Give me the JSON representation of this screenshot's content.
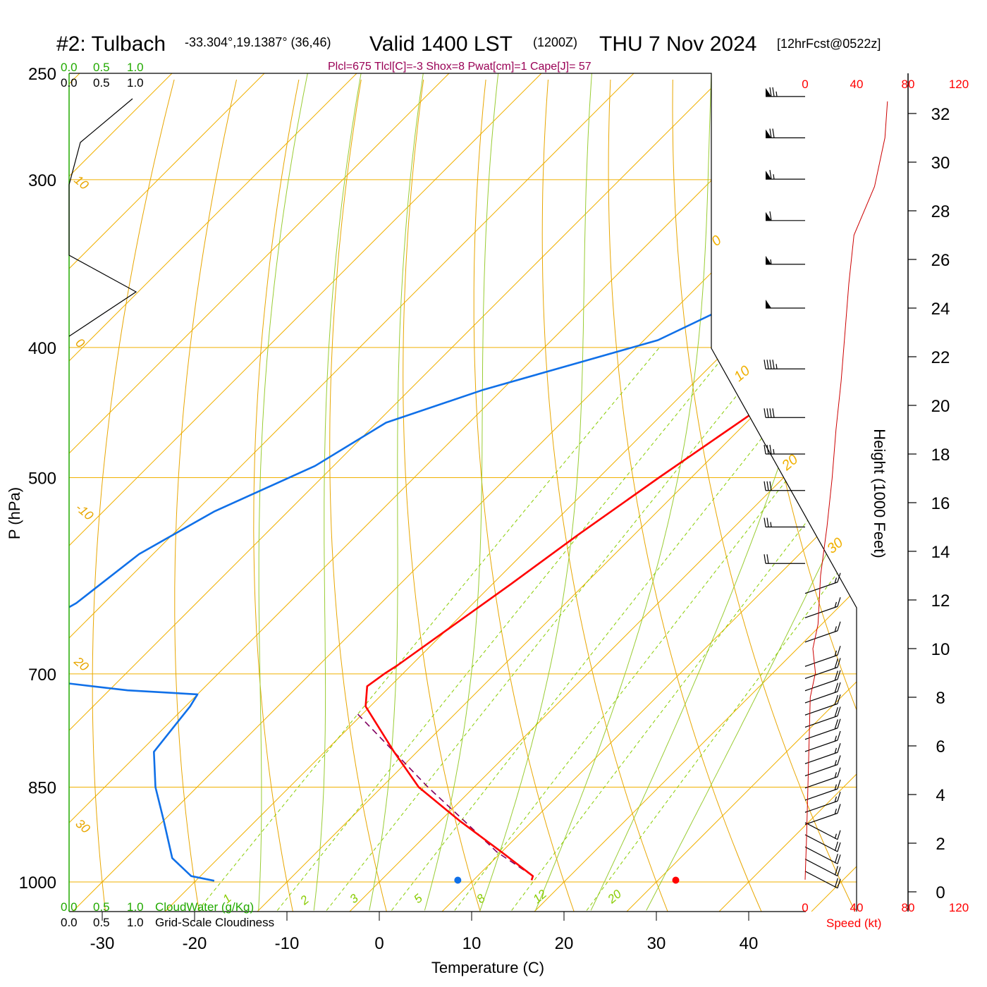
{
  "header": {
    "station": "#2: Tulbach",
    "coords": "-33.304°,19.1387° (36,46)",
    "valid": "Valid 1400 LST",
    "zulu": "(1200Z)",
    "date": "THU 7 Nov 2024",
    "forecast": "[12hrFcst@0522z]",
    "params": "Plcl=675 Tlcl[C]=-3 Shox=8 Pwat[cm]=1 Cape[J]= 57"
  },
  "cloud_scale": {
    "ticks": [
      "0.0",
      "0.5",
      "1.0"
    ],
    "water_label": "CloudWater (g/Kg)",
    "cloudiness_label": "Grid-Scale Cloudiness"
  },
  "speed_scale": {
    "ticks": [
      "0",
      "40",
      "80",
      "120"
    ],
    "label": "Speed (kt)"
  },
  "colors": {
    "temperature": "#ff0000",
    "dewpoint": "#1070e8",
    "parcel": "#800060",
    "isotherm": "#f0b000",
    "mixing_ratio": "#88cc00",
    "moist_adiabat": "#99cc33",
    "wind_speed": "#cc0000"
  },
  "chart_data": {
    "type": "skew-t",
    "title": "#2: Tulbach Valid 1400 LST (1200Z) THU 7 Nov 2024 [12hrFcst@0522z]",
    "xlabel": "Temperature (C)",
    "ylabel": "P (hPa)",
    "y2label": "Height (1000 Feet)",
    "x_ticks": [
      "-30",
      "-20",
      "-10",
      "0",
      "10",
      "20",
      "30",
      "40"
    ],
    "p_ticks": [
      "250",
      "300",
      "400",
      "500",
      "700",
      "850",
      "1000"
    ],
    "height_ticks": [
      "0",
      "2",
      "4",
      "6",
      "8",
      "10",
      "12",
      "14",
      "16",
      "18",
      "20",
      "22",
      "24",
      "26",
      "28",
      "30",
      "32"
    ],
    "isotherm_labels": [
      "-30",
      "-20",
      "-10",
      "0",
      "10",
      "20",
      "30",
      "-10",
      "0",
      "10"
    ],
    "mixing_ratio_labels": [
      "1",
      "2",
      "3",
      "5",
      "8",
      "12",
      "20"
    ],
    "series": [
      {
        "name": "Temperature",
        "points": [
          [
            265,
            1.0
          ],
          [
            290,
            -1.0
          ],
          [
            320,
            -3.5
          ],
          [
            360,
            -6.0
          ],
          [
            400,
            -8.0
          ],
          [
            450,
            -10.5
          ],
          [
            500,
            -13.5
          ],
          [
            550,
            -16.0
          ],
          [
            600,
            -18.0
          ],
          [
            650,
            -20.0
          ],
          [
            690,
            -21.5
          ],
          [
            700,
            -22.0
          ],
          [
            715,
            -22.5
          ],
          [
            740,
            -20.5
          ],
          [
            800,
            -12.5
          ],
          [
            850,
            -6.0
          ],
          [
            900,
            2.0
          ],
          [
            950,
            10.0
          ],
          [
            990,
            16.0
          ],
          [
            997,
            16.3
          ]
        ]
      },
      {
        "name": "Dewpoint",
        "points": [
          [
            260,
            -6.0
          ],
          [
            300,
            -11.0
          ],
          [
            350,
            -20.0
          ],
          [
            370,
            -24.0
          ],
          [
            395,
            -28.5
          ],
          [
            430,
            -42.0
          ],
          [
            455,
            -49.0
          ],
          [
            490,
            -52.0
          ],
          [
            530,
            -58.0
          ],
          [
            570,
            -61.5
          ],
          [
            620,
            -63.0
          ],
          [
            660,
            -66.0
          ],
          [
            690,
            -69.5
          ],
          [
            700,
            -65.0
          ],
          [
            720,
            -48.0
          ],
          [
            725,
            -40.0
          ],
          [
            740,
            -39.5
          ],
          [
            800,
            -38.5
          ],
          [
            850,
            -34.5
          ],
          [
            900,
            -30.0
          ],
          [
            960,
            -25.0
          ],
          [
            990,
            -21.0
          ],
          [
            998,
            -18.0
          ]
        ]
      },
      {
        "name": "Parcel",
        "points": [
          [
            750,
            -20.5
          ],
          [
            800,
            -12.5
          ],
          [
            850,
            -5.0
          ],
          [
            900,
            2.5
          ],
          [
            950,
            9.5
          ],
          [
            990,
            16.0
          ]
        ]
      }
    ],
    "surface_temperature": 32.1,
    "surface_dewpoint": 8.5,
    "surface_pressure": 997,
    "wind_speed_profile": [
      [
        0.5,
        0
      ],
      [
        2,
        1
      ],
      [
        4,
        2
      ],
      [
        6,
        3
      ],
      [
        8,
        4
      ],
      [
        9,
        8
      ],
      [
        10,
        6
      ],
      [
        11,
        10
      ],
      [
        13,
        12
      ],
      [
        15,
        17
      ],
      [
        17,
        21
      ],
      [
        19,
        24
      ],
      [
        21,
        28
      ],
      [
        23,
        31
      ],
      [
        25,
        34
      ],
      [
        27,
        38
      ],
      [
        29,
        54
      ],
      [
        31,
        62
      ],
      [
        32.5,
        64
      ]
    ],
    "wind_barbs": [
      {
        "height": 0.5,
        "speed": 20
      },
      {
        "height": 1.0,
        "speed": 20
      },
      {
        "height": 1.5,
        "speed": 20
      },
      {
        "height": 2.0,
        "speed": 20
      },
      {
        "height": 2.5,
        "speed": 15
      },
      {
        "height": 3.0,
        "speed": 15
      },
      {
        "height": 3.5,
        "speed": 15
      },
      {
        "height": 4.0,
        "speed": 15
      },
      {
        "height": 4.5,
        "speed": 15
      },
      {
        "height": 5.0,
        "speed": 15
      },
      {
        "height": 5.5,
        "speed": 15
      },
      {
        "height": 6.0,
        "speed": 15
      },
      {
        "height": 6.5,
        "speed": 20
      },
      {
        "height": 7.0,
        "speed": 20
      },
      {
        "height": 7.5,
        "speed": 20
      },
      {
        "height": 8.0,
        "speed": 20
      },
      {
        "height": 8.5,
        "speed": 20
      },
      {
        "height": 9.0,
        "speed": 20
      },
      {
        "height": 9.5,
        "speed": 15
      },
      {
        "height": 10.5,
        "speed": 15
      },
      {
        "height": 11.5,
        "speed": 15
      },
      {
        "height": 12.5,
        "speed": 15
      },
      {
        "height": 13.5,
        "speed": 20
      },
      {
        "height": 15,
        "speed": 25
      },
      {
        "height": 16.5,
        "speed": 30
      },
      {
        "height": 18,
        "speed": 35
      },
      {
        "height": 19.5,
        "speed": 40
      },
      {
        "height": 21.5,
        "speed": 45
      },
      {
        "height": 24,
        "speed": 50
      },
      {
        "height": 25.8,
        "speed": 55
      },
      {
        "height": 27.6,
        "speed": 60
      },
      {
        "height": 29.3,
        "speed": 65
      },
      {
        "height": 31,
        "speed": 70
      },
      {
        "height": 32.7,
        "speed": 75
      }
    ]
  }
}
